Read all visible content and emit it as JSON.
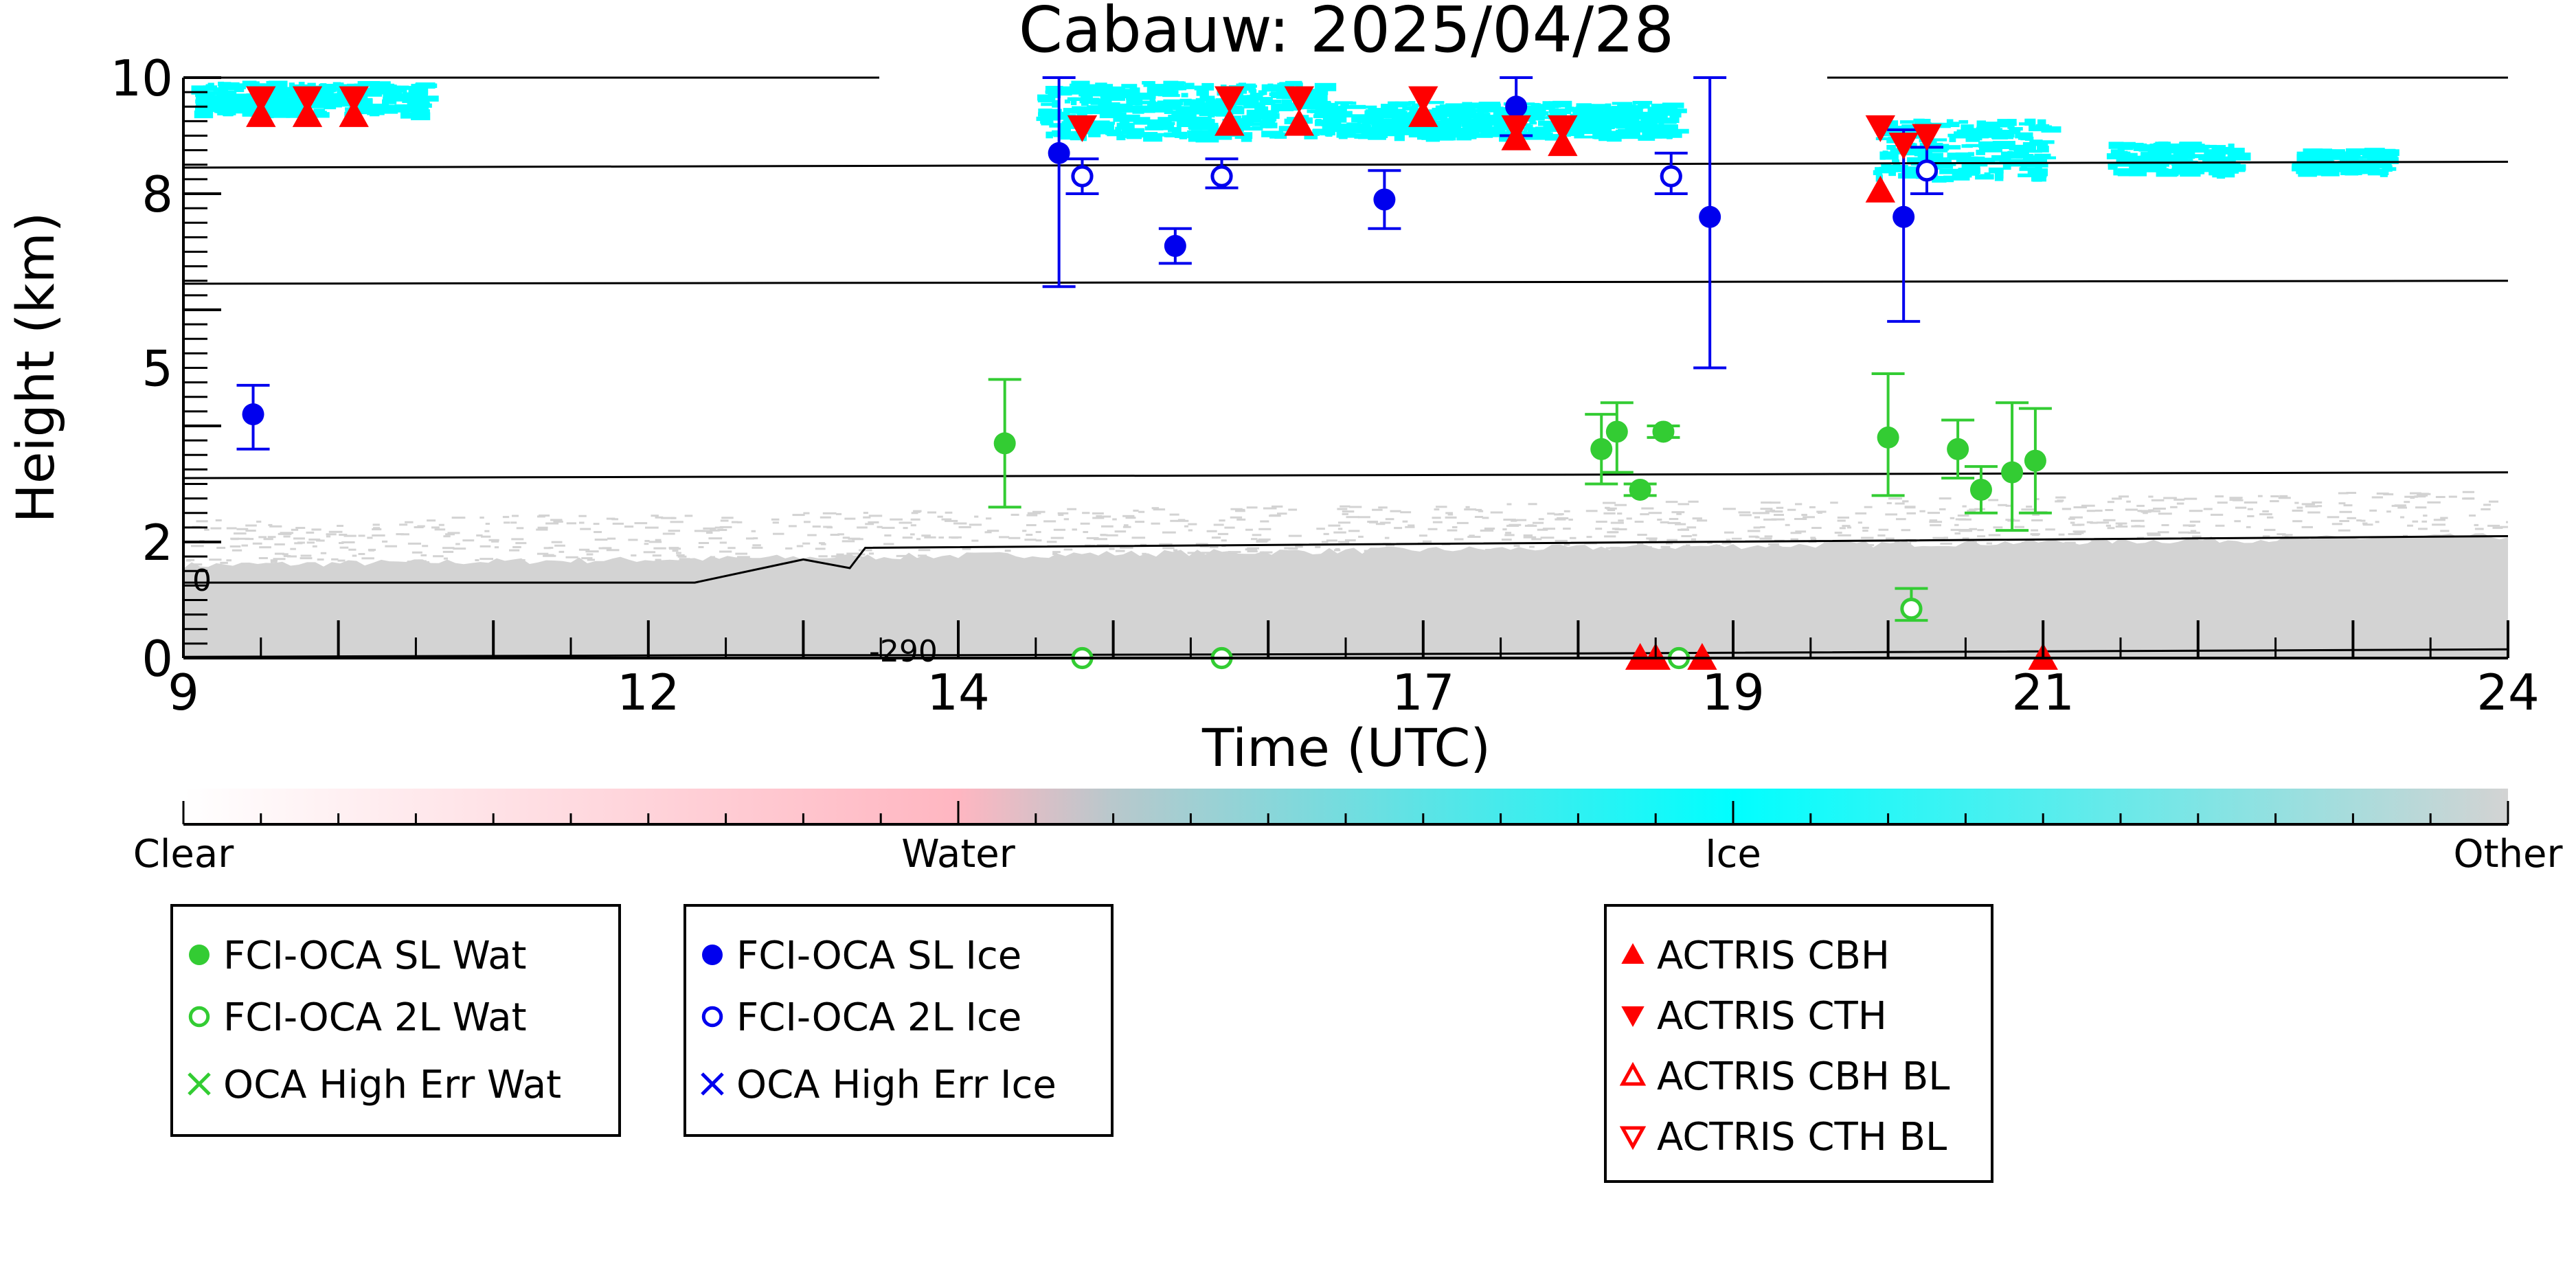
{
  "chart_data": {
    "type": "scatter",
    "title": "Cabauw: 2025/04/28",
    "xlabel": "Time (UTC)",
    "ylabel": "Height (km)",
    "xlim": [
      9,
      24
    ],
    "ylim": [
      0,
      10
    ],
    "x_ticks": [
      9,
      12,
      14,
      17,
      19,
      21,
      24
    ],
    "x_tick_labels": [
      "9",
      "12",
      "14",
      "17",
      "19",
      "21",
      "24"
    ],
    "y_ticks": [
      0,
      2,
      5,
      8,
      10
    ],
    "y_tick_labels": [
      "0",
      "2",
      "5",
      "8",
      "10"
    ],
    "grid": false,
    "background_field": {
      "classes": [
        "Clear",
        "Water",
        "Ice",
        "Other"
      ],
      "colors": [
        "#ffffff",
        "#ffb6c1",
        "#00ffff",
        "#d3d3d3"
      ],
      "ice_patches": [
        {
          "x": [
            9.05,
            10.5
          ],
          "y": [
            9.4,
            9.95
          ]
        },
        {
          "x": [
            14.5,
            16.3
          ],
          "y": [
            9.0,
            9.95
          ]
        },
        {
          "x": [
            16.3,
            18.6
          ],
          "y": [
            9.0,
            9.6
          ]
        },
        {
          "x": [
            19.9,
            21.0
          ],
          "y": [
            8.3,
            9.3
          ]
        },
        {
          "x": [
            21.4,
            22.2
          ],
          "y": [
            8.4,
            8.9
          ]
        },
        {
          "x": [
            22.6,
            23.2
          ],
          "y": [
            8.4,
            8.8
          ]
        }
      ],
      "other_layer": {
        "x": [
          9,
          24
        ],
        "top_start": 1.6,
        "top_end": 2.1
      }
    },
    "colorbar": {
      "labels": [
        "Clear",
        "Water",
        "Ice",
        "Other"
      ],
      "positions": [
        0,
        1,
        2,
        3
      ],
      "colors": [
        "#ffffff",
        "#ffb6c1",
        "#00ffff",
        "#d3d3d3"
      ]
    },
    "isotherm_labels": [
      "0",
      "-290"
    ],
    "contours": [
      {
        "x": [
          9,
          24
        ],
        "y": [
          8.45,
          8.55
        ]
      },
      {
        "x": [
          9,
          24
        ],
        "y": [
          6.45,
          6.5
        ]
      },
      {
        "x": [
          9,
          24
        ],
        "y": [
          3.1,
          3.2
        ]
      },
      {
        "x": [
          9,
          12.3,
          13.0,
          13.3,
          13.4,
          24
        ],
        "y": [
          1.3,
          1.3,
          1.7,
          1.55,
          1.9,
          2.1
        ]
      },
      {
        "x": [
          9,
          12.5,
          14.0,
          18.0,
          24
        ],
        "y": [
          0.02,
          0.05,
          0.05,
          0.08,
          0.15
        ]
      }
    ],
    "legend_boxes": [
      {
        "placement": "bottom-left",
        "items": [
          {
            "label": "FCI-OCA SL Wat",
            "marker": "filled-circle",
            "color": "#33cc33"
          },
          {
            "label": "FCI-OCA 2L Wat",
            "marker": "open-circle",
            "color": "#33cc33"
          },
          {
            "label": "OCA High Err Wat",
            "marker": "x",
            "color": "#33cc33"
          }
        ]
      },
      {
        "placement": "bottom-center-left",
        "items": [
          {
            "label": "FCI-OCA SL Ice",
            "marker": "filled-circle",
            "color": "#0000ee"
          },
          {
            "label": "FCI-OCA 2L Ice",
            "marker": "open-circle",
            "color": "#0000ee"
          },
          {
            "label": "OCA High Err Ice",
            "marker": "x",
            "color": "#0000ee"
          }
        ]
      },
      {
        "placement": "bottom-center-right",
        "items": [
          {
            "label": "ACTRIS CBH",
            "marker": "triangle-up",
            "color": "#ff0000"
          },
          {
            "label": "ACTRIS CTH",
            "marker": "triangle-down",
            "color": "#ff0000"
          },
          {
            "label": "ACTRIS CBH BL",
            "marker": "triangle-up-open",
            "color": "#ff0000"
          },
          {
            "label": "ACTRIS CTH BL",
            "marker": "triangle-down-open",
            "color": "#ff0000"
          }
        ]
      }
    ],
    "series": [
      {
        "name": "FCI-OCA SL Wat",
        "color": "#33cc33",
        "marker": "filled-circle",
        "points": [
          {
            "x": 14.3,
            "y": 3.7,
            "lo": 2.6,
            "hi": 4.8
          },
          {
            "x": 18.15,
            "y": 3.6,
            "lo": 3.0,
            "hi": 4.2
          },
          {
            "x": 18.25,
            "y": 3.9,
            "lo": 3.2,
            "hi": 4.4
          },
          {
            "x": 18.4,
            "y": 2.9,
            "lo": 2.8,
            "hi": 3.0
          },
          {
            "x": 18.55,
            "y": 3.9,
            "lo": 3.8,
            "hi": 4.0
          },
          {
            "x": 20.0,
            "y": 3.8,
            "lo": 2.8,
            "hi": 4.9
          },
          {
            "x": 20.45,
            "y": 3.6,
            "lo": 3.1,
            "hi": 4.1
          },
          {
            "x": 20.6,
            "y": 2.9,
            "lo": 2.5,
            "hi": 3.3
          },
          {
            "x": 20.8,
            "y": 3.2,
            "lo": 2.2,
            "hi": 4.4
          },
          {
            "x": 20.95,
            "y": 3.4,
            "lo": 2.5,
            "hi": 4.3
          }
        ]
      },
      {
        "name": "FCI-OCA 2L Wat",
        "color": "#33cc33",
        "marker": "open-circle",
        "points": [
          {
            "x": 14.8,
            "y": 0.0
          },
          {
            "x": 15.7,
            "y": 0.0
          },
          {
            "x": 18.65,
            "y": 0.0
          },
          {
            "x": 20.15,
            "y": 0.85,
            "lo": 0.65,
            "hi": 1.2
          }
        ]
      },
      {
        "name": "FCI-OCA SL Ice",
        "color": "#0000ee",
        "marker": "filled-circle",
        "points": [
          {
            "x": 9.45,
            "y": 4.2,
            "lo": 3.6,
            "hi": 4.7
          },
          {
            "x": 14.65,
            "y": 8.7,
            "lo": 6.4,
            "hi": 10
          },
          {
            "x": 15.4,
            "y": 7.1,
            "lo": 6.8,
            "hi": 7.4
          },
          {
            "x": 16.75,
            "y": 7.9,
            "lo": 7.4,
            "hi": 8.4
          },
          {
            "x": 17.6,
            "y": 9.5,
            "lo": 9.0,
            "hi": 10
          },
          {
            "x": 18.85,
            "y": 7.6,
            "lo": 5.0,
            "hi": 10
          },
          {
            "x": 20.1,
            "y": 7.6,
            "lo": 5.8,
            "hi": 9.1
          }
        ]
      },
      {
        "name": "FCI-OCA 2L Ice",
        "color": "#0000ee",
        "marker": "open-circle",
        "points": [
          {
            "x": 14.8,
            "y": 8.3,
            "lo": 8.0,
            "hi": 8.6
          },
          {
            "x": 15.7,
            "y": 8.3,
            "lo": 8.1,
            "hi": 8.6
          },
          {
            "x": 18.6,
            "y": 8.3,
            "lo": 8.0,
            "hi": 8.7
          },
          {
            "x": 20.25,
            "y": 8.4,
            "lo": 8.0,
            "hi": 8.8
          }
        ]
      },
      {
        "name": "ACTRIS CTH",
        "color": "#ff0000",
        "marker": "triangle-down",
        "points": [
          {
            "x": 9.5,
            "y": 9.65
          },
          {
            "x": 9.8,
            "y": 9.65
          },
          {
            "x": 10.1,
            "y": 9.65
          },
          {
            "x": 14.8,
            "y": 9.15
          },
          {
            "x": 15.75,
            "y": 9.65
          },
          {
            "x": 16.2,
            "y": 9.65
          },
          {
            "x": 17.0,
            "y": 9.65
          },
          {
            "x": 17.6,
            "y": 9.15
          },
          {
            "x": 17.9,
            "y": 9.15
          },
          {
            "x": 19.95,
            "y": 9.15
          },
          {
            "x": 20.1,
            "y": 8.85
          },
          {
            "x": 20.25,
            "y": 9.0
          }
        ]
      },
      {
        "name": "ACTRIS CBH",
        "color": "#ff0000",
        "marker": "triangle-up",
        "points": [
          {
            "x": 9.5,
            "y": 9.35
          },
          {
            "x": 9.8,
            "y": 9.35
          },
          {
            "x": 10.1,
            "y": 9.35
          },
          {
            "x": 15.75,
            "y": 9.2
          },
          {
            "x": 16.2,
            "y": 9.2
          },
          {
            "x": 17.0,
            "y": 9.35
          },
          {
            "x": 17.6,
            "y": 8.95
          },
          {
            "x": 17.9,
            "y": 8.85
          },
          {
            "x": 19.95,
            "y": 8.05
          },
          {
            "x": 18.4,
            "y": 0.0
          },
          {
            "x": 18.5,
            "y": 0.0
          },
          {
            "x": 18.8,
            "y": 0.0
          },
          {
            "x": 21.0,
            "y": 0.0
          }
        ]
      }
    ]
  }
}
